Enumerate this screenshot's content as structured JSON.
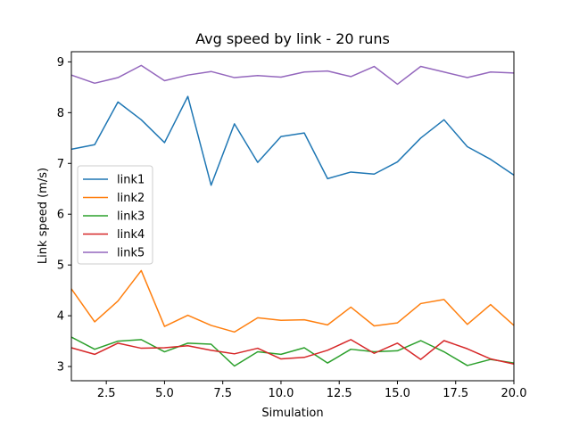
{
  "chart_data": {
    "type": "line",
    "title": "Avg speed by link - 20 runs",
    "xlabel": "Simulation",
    "ylabel": "Link speed (m/s)",
    "xlim": [
      1,
      20
    ],
    "ylim": [
      2.72,
      9.2
    ],
    "xticks": [
      2.5,
      5.0,
      7.5,
      10.0,
      12.5,
      15.0,
      17.5,
      20.0
    ],
    "xtick_labels": [
      "2.5",
      "5.0",
      "7.5",
      "10.0",
      "12.5",
      "15.0",
      "17.5",
      "20.0"
    ],
    "yticks": [
      3,
      4,
      5,
      6,
      7,
      8,
      9
    ],
    "ytick_labels": [
      "3",
      "4",
      "5",
      "6",
      "7",
      "8",
      "9"
    ],
    "grid": false,
    "legend_position": "center-left",
    "x": [
      1,
      2,
      3,
      4,
      5,
      6,
      7,
      8,
      9,
      10,
      11,
      12,
      13,
      14,
      15,
      16,
      17,
      18,
      19,
      20
    ],
    "series": [
      {
        "name": "link1",
        "color": "#1f77b4",
        "values": [
          7.28,
          7.37,
          8.21,
          7.86,
          7.41,
          8.32,
          6.57,
          7.78,
          7.02,
          7.53,
          7.6,
          6.7,
          6.83,
          6.79,
          7.03,
          7.5,
          7.86,
          7.33,
          7.08,
          6.77
        ]
      },
      {
        "name": "link2",
        "color": "#ff7f0e",
        "values": [
          4.53,
          3.88,
          4.29,
          4.89,
          3.79,
          4.01,
          3.81,
          3.68,
          3.96,
          3.91,
          3.92,
          3.82,
          4.17,
          3.8,
          3.86,
          4.24,
          4.32,
          3.83,
          4.22,
          3.81
        ]
      },
      {
        "name": "link3",
        "color": "#2ca02c",
        "values": [
          3.58,
          3.34,
          3.5,
          3.53,
          3.29,
          3.46,
          3.44,
          3.01,
          3.29,
          3.24,
          3.37,
          3.07,
          3.34,
          3.29,
          3.31,
          3.51,
          3.29,
          3.02,
          3.14,
          3.07
        ]
      },
      {
        "name": "link4",
        "color": "#d62728",
        "values": [
          3.37,
          3.24,
          3.46,
          3.36,
          3.37,
          3.41,
          3.32,
          3.25,
          3.36,
          3.15,
          3.18,
          3.32,
          3.53,
          3.26,
          3.46,
          3.14,
          3.51,
          3.35,
          3.15,
          3.05
        ]
      },
      {
        "name": "link5",
        "color": "#9467bd",
        "values": [
          8.74,
          8.58,
          8.69,
          8.93,
          8.63,
          8.74,
          8.81,
          8.69,
          8.73,
          8.7,
          8.8,
          8.82,
          8.71,
          8.91,
          8.56,
          8.91,
          8.8,
          8.69,
          8.8,
          8.78
        ]
      }
    ]
  }
}
